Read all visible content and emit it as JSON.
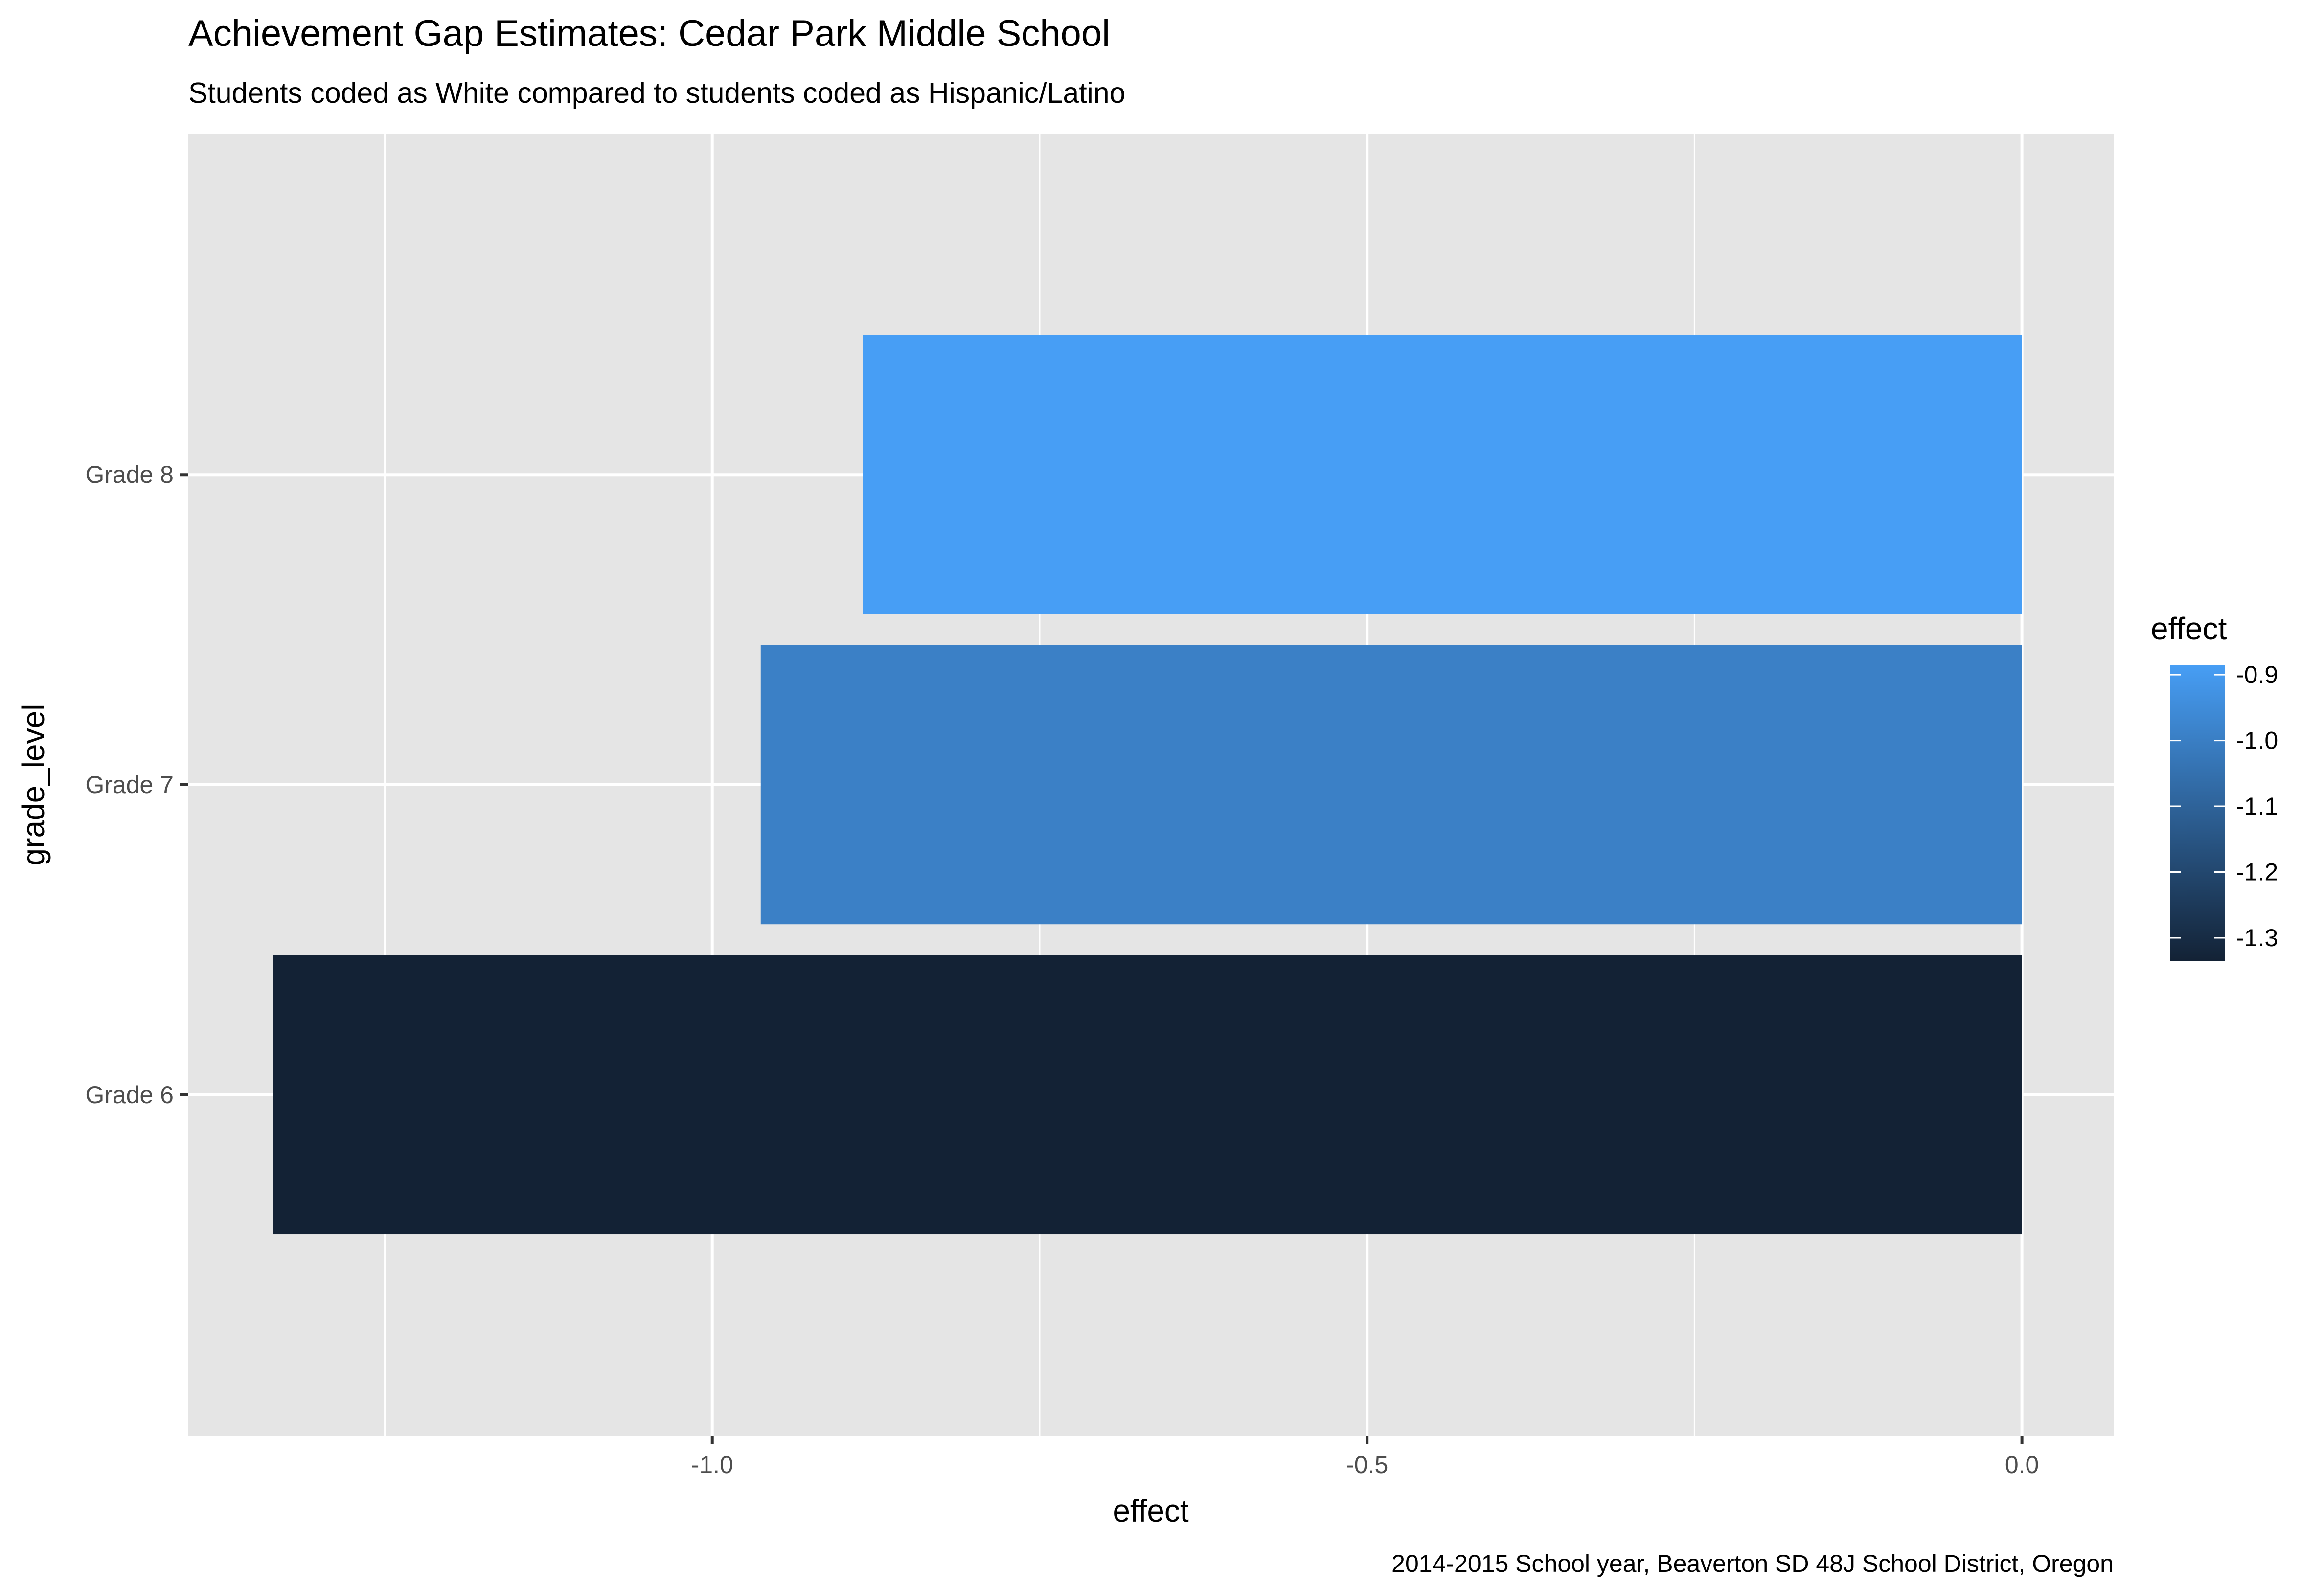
{
  "chart_data": {
    "type": "bar",
    "orientation": "horizontal",
    "title": "Achievement Gap Estimates: Cedar Park Middle School",
    "subtitle": "Students coded as White compared to students coded as Hispanic/Latino",
    "xlabel": "effect",
    "ylabel": "grade_level",
    "caption": "2014-2015 School year, Beaverton SD 48J School District, Oregon",
    "categories": [
      "Grade 6",
      "Grade 7",
      "Grade 8"
    ],
    "values": [
      -1.335,
      -0.963,
      -0.885
    ],
    "bar_colors": [
      "#132235",
      "#3b80c6",
      "#479ef5"
    ],
    "xlim": [
      -1.4,
      0.07
    ],
    "x_ticks": [
      {
        "value": -1.0,
        "label": "-1.0"
      },
      {
        "value": -0.5,
        "label": "-0.5"
      },
      {
        "value": 0.0,
        "label": "0.0"
      }
    ],
    "grid": true,
    "legend": {
      "title": "effect",
      "position": "right",
      "type": "colorbar",
      "low": -1.335,
      "high": -0.885,
      "low_color": "#132235",
      "high_color": "#479ef5",
      "ticks": [
        {
          "value": -0.9,
          "label": "-0.9"
        },
        {
          "value": -1.0,
          "label": "-1.0"
        },
        {
          "value": -1.1,
          "label": "-1.1"
        },
        {
          "value": -1.2,
          "label": "-1.2"
        },
        {
          "value": -1.3,
          "label": "-1.3"
        }
      ]
    },
    "colors": {
      "panel_background": "#e5e5e5",
      "grid_major": "#ffffff",
      "tick_label": "#4d4d4d"
    }
  }
}
